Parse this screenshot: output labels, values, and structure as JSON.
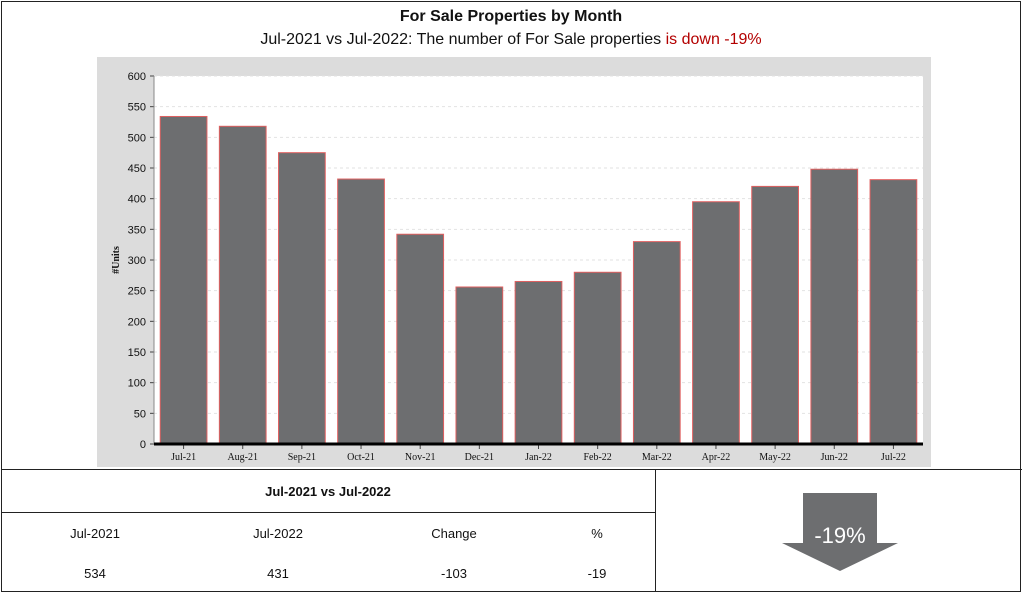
{
  "header": {
    "title": "For Sale Properties by Month",
    "subtitle_main": "Jul-2021 vs Jul-2022: The number of For Sale properties",
    "subtitle_change": "is down -19%"
  },
  "chart_data": {
    "type": "bar",
    "categories": [
      "Jul-21",
      "Aug-21",
      "Sep-21",
      "Oct-21",
      "Nov-21",
      "Dec-21",
      "Jan-22",
      "Feb-22",
      "Mar-22",
      "Apr-22",
      "May-22",
      "Jun-22",
      "Jul-22"
    ],
    "values": [
      534,
      518,
      475,
      432,
      342,
      256,
      265,
      280,
      330,
      395,
      420,
      448,
      431
    ],
    "ylabel": "#Units",
    "ylim": [
      0,
      600
    ],
    "yticks": [
      0,
      50,
      100,
      150,
      200,
      250,
      300,
      350,
      400,
      450,
      500,
      550,
      600
    ],
    "grid": true,
    "bar_color": "#6d6e70",
    "bar_edge_color": "#e06060"
  },
  "summary": {
    "heading": "Jul-2021 vs Jul-2022",
    "columns": [
      "Jul-2021",
      "Jul-2022",
      "Change",
      "%"
    ],
    "values": [
      "534",
      "431",
      "-103",
      "-19"
    ]
  },
  "badge": {
    "label": "-19%",
    "icon": "down-arrow-icon",
    "color": "#6d6e70"
  }
}
